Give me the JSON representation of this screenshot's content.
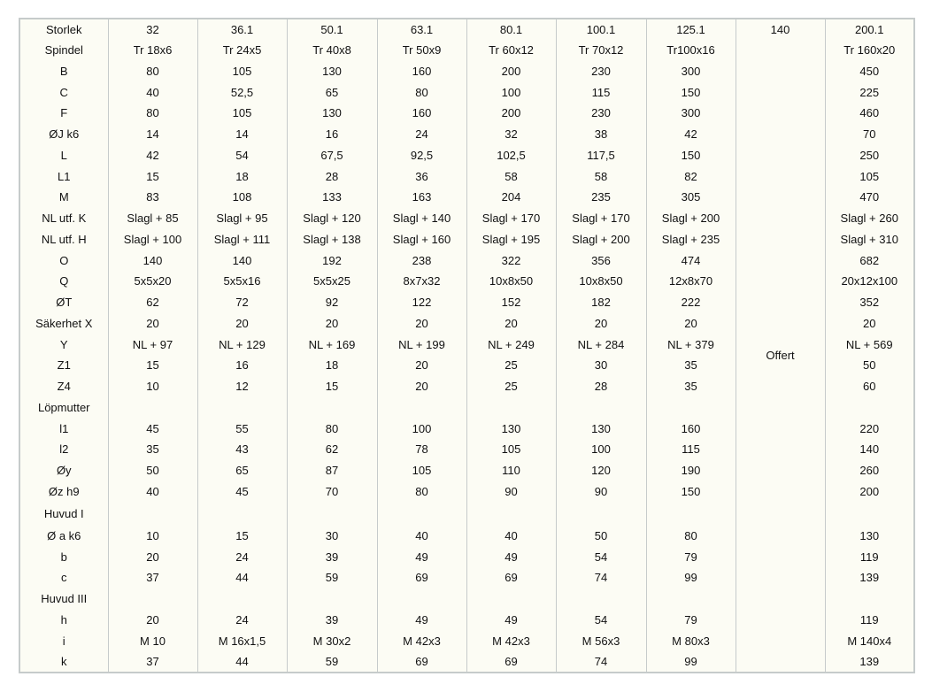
{
  "table": {
    "headers": [
      "Storlek",
      "32",
      "36.1",
      "50.1",
      "63.1",
      "80.1",
      "100.1",
      "125.1",
      "140",
      "200.1"
    ],
    "offert_label": "Offert",
    "rows": [
      {
        "label": "Spindel",
        "values": [
          "Tr 18x6",
          "Tr 24x5",
          "Tr 40x8",
          "Tr 50x9",
          "Tr 60x12",
          "Tr 70x12",
          "Tr100x16",
          "Tr 160x20"
        ]
      },
      {
        "label": "B",
        "values": [
          "80",
          "105",
          "130",
          "160",
          "200",
          "230",
          "300",
          "450"
        ]
      },
      {
        "label": "C",
        "values": [
          "40",
          "52,5",
          "65",
          "80",
          "100",
          "115",
          "150",
          "225"
        ]
      },
      {
        "label": "F",
        "values": [
          "80",
          "105",
          "130",
          "160",
          "200",
          "230",
          "300",
          "460"
        ]
      },
      {
        "label": "ØJ k6",
        "values": [
          "14",
          "14",
          "16",
          "24",
          "32",
          "38",
          "42",
          "70"
        ]
      },
      {
        "label": "L",
        "values": [
          "42",
          "54",
          "67,5",
          "92,5",
          "102,5",
          "117,5",
          "150",
          "250"
        ]
      },
      {
        "label": "L1",
        "values": [
          "15",
          "18",
          "28",
          "36",
          "58",
          "58",
          "82",
          "105"
        ]
      },
      {
        "label": "M",
        "values": [
          "83",
          "108",
          "133",
          "163",
          "204",
          "235",
          "305",
          "470"
        ]
      },
      {
        "label": "NL utf. K",
        "values": [
          "Slagl + 85",
          "Slagl + 95",
          "Slagl + 120",
          "Slagl + 140",
          "Slagl + 170",
          "Slagl + 170",
          "Slagl + 200",
          "Slagl + 260"
        ]
      },
      {
        "label": "NL utf. H",
        "values": [
          "Slagl + 100",
          "Slagl + 111",
          "Slagl + 138",
          "Slagl + 160",
          "Slagl + 195",
          "Slagl + 200",
          "Slagl + 235",
          "Slagl + 310"
        ]
      },
      {
        "label": "O",
        "values": [
          "140",
          "140",
          "192",
          "238",
          "322",
          "356",
          "474",
          "682"
        ]
      },
      {
        "label": "Q",
        "values": [
          "5x5x20",
          "5x5x16",
          "5x5x25",
          "8x7x32",
          "10x8x50",
          "10x8x50",
          "12x8x70",
          "20x12x100"
        ]
      },
      {
        "label": "ØT",
        "values": [
          "62",
          "72",
          "92",
          "122",
          "152",
          "182",
          "222",
          "352"
        ]
      },
      {
        "label": "Säkerhet X",
        "values": [
          "20",
          "20",
          "20",
          "20",
          "20",
          "20",
          "20",
          "20"
        ]
      },
      {
        "label": "Y",
        "values": [
          "NL + 97",
          "NL + 129",
          "NL + 169",
          "NL + 199",
          "NL + 249",
          "NL + 284",
          "NL + 379",
          "NL + 569"
        ]
      },
      {
        "label": "Z1",
        "values": [
          "15",
          "16",
          "18",
          "20",
          "25",
          "30",
          "35",
          "50"
        ]
      },
      {
        "label": "Z4",
        "values": [
          "10",
          "12",
          "15",
          "20",
          "25",
          "28",
          "35",
          "60"
        ]
      },
      {
        "label": "Löpmutter",
        "values": [
          "",
          "",
          "",
          "",
          "",
          "",
          "",
          ""
        ]
      },
      {
        "label": "l1",
        "values": [
          "45",
          "55",
          "80",
          "100",
          "130",
          "130",
          "160",
          "220"
        ]
      },
      {
        "label": "l2",
        "values": [
          "35",
          "43",
          "62",
          "78",
          "105",
          "100",
          "115",
          "140"
        ]
      },
      {
        "label": "Øy",
        "values": [
          "50",
          "65",
          "87",
          "105",
          "110",
          "120",
          "190",
          "260"
        ]
      },
      {
        "label": "Øz h9",
        "values": [
          "40",
          "45",
          "70",
          "80",
          "90",
          "90",
          "150",
          "200"
        ]
      },
      {
        "label": "Huvud I",
        "values": [
          "",
          "",
          "",
          "",
          "",
          "",
          "",
          ""
        ]
      },
      {
        "label": "Ø a k6",
        "values": [
          "10",
          "15",
          "30",
          "40",
          "40",
          "50",
          "80",
          "130"
        ]
      },
      {
        "label": "b",
        "values": [
          "20",
          "24",
          "39",
          "49",
          "49",
          "54",
          "79",
          "119"
        ]
      },
      {
        "label": "c",
        "values": [
          "37",
          "44",
          "59",
          "69",
          "69",
          "74",
          "99",
          "139"
        ]
      },
      {
        "label": "Huvud III",
        "values": [
          "",
          "",
          "",
          "",
          "",
          "",
          "",
          ""
        ]
      },
      {
        "label": "h",
        "values": [
          "20",
          "24",
          "39",
          "49",
          "49",
          "54",
          "79",
          "119"
        ]
      },
      {
        "label": "i",
        "values": [
          "M 10",
          "M 16x1,5",
          "M 30x2",
          "M 42x3",
          "M 42x3",
          "M 56x3",
          "M 80x3",
          "M 140x4"
        ]
      },
      {
        "label": "k",
        "values": [
          "37",
          "44",
          "59",
          "69",
          "69",
          "74",
          "99",
          "139"
        ]
      }
    ]
  }
}
